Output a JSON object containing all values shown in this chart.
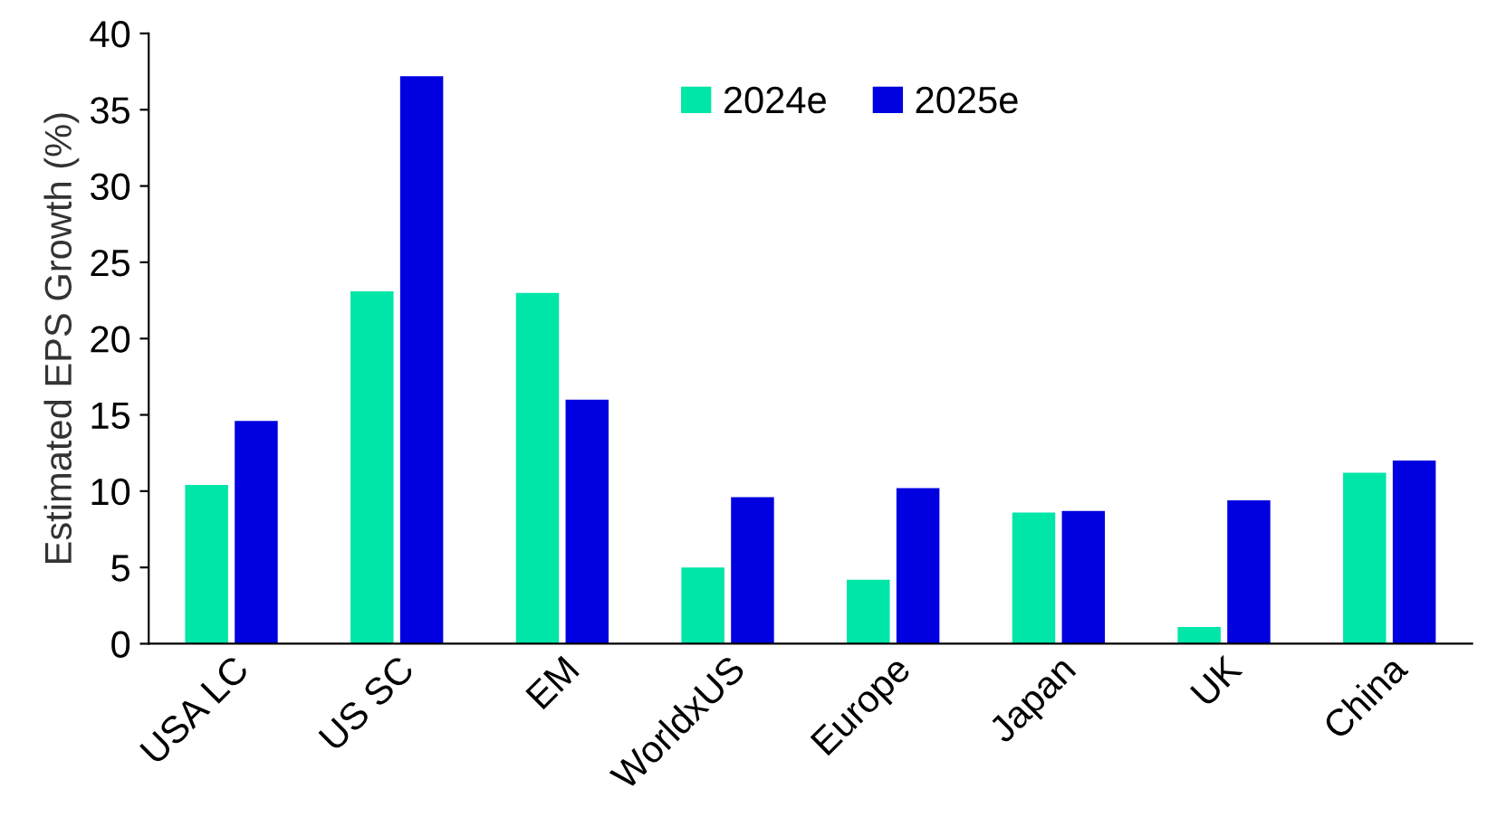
{
  "chart_data": {
    "type": "bar",
    "ylabel": "Estimated EPS Growth (%)",
    "categories": [
      "USA LC",
      "US SC",
      "EM",
      "WorldxUS",
      "Europe",
      "Japan",
      "UK",
      "China"
    ],
    "series": [
      {
        "name": "2024e",
        "color": "#00e6a8",
        "values": [
          10.4,
          23.1,
          23.0,
          5.0,
          4.2,
          8.6,
          1.1,
          11.2
        ]
      },
      {
        "name": "2025e",
        "color": "#0000e0",
        "values": [
          14.6,
          37.2,
          16.0,
          9.6,
          10.2,
          8.7,
          9.4,
          12.0
        ]
      }
    ],
    "ylim": [
      0,
      40
    ],
    "yticks": [
      0,
      5,
      10,
      15,
      20,
      25,
      30,
      35,
      40
    ],
    "grid": false,
    "legend": "top"
  }
}
